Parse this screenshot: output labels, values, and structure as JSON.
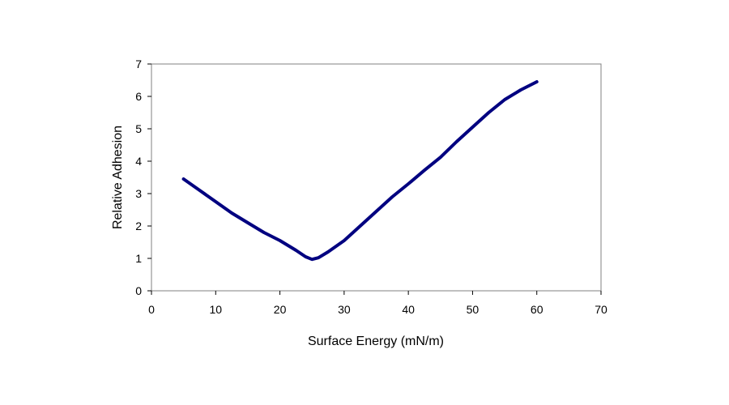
{
  "chart_data": {
    "type": "line",
    "title": "",
    "xlabel": "Surface Energy (mN/m)",
    "ylabel": "Relative Adhesion",
    "xlim": [
      0,
      70
    ],
    "ylim": [
      0,
      7
    ],
    "x_ticks": [
      "0",
      "10",
      "20",
      "30",
      "40",
      "50",
      "60",
      "70"
    ],
    "y_ticks": [
      "0",
      "1",
      "2",
      "3",
      "4",
      "5",
      "6",
      "7"
    ],
    "grid": false,
    "legend": "none",
    "series": [
      {
        "color": "#000080",
        "x": [
          5,
          7.5,
          10,
          12.5,
          15,
          17.5,
          20,
          22.5,
          24,
          25,
          26,
          27.5,
          30,
          32.5,
          35,
          37.5,
          40,
          42.5,
          45,
          47.5,
          50,
          52.5,
          55,
          57.5,
          60
        ],
        "y": [
          3.45,
          3.1,
          2.75,
          2.4,
          2.1,
          1.8,
          1.55,
          1.25,
          1.05,
          0.97,
          1.02,
          1.2,
          1.55,
          2.0,
          2.45,
          2.9,
          3.3,
          3.72,
          4.12,
          4.6,
          5.05,
          5.5,
          5.9,
          6.2,
          6.45
        ]
      }
    ]
  }
}
